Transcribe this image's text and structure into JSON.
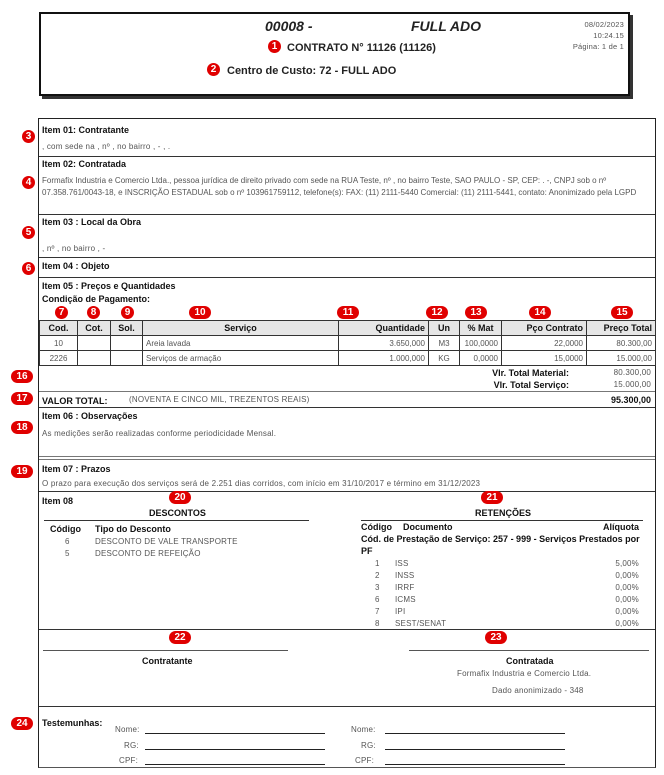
{
  "header": {
    "code": "00008 -",
    "company": "FULL ADO",
    "contract": "CONTRATO N° 11126 (11126)",
    "cost_center": "Centro de Custo: 72 - FULL ADO",
    "date": "08/02/2023",
    "time": "10:24.15",
    "page": "Página: 1 de 1"
  },
  "item01": {
    "title": "Item 01: Contratante",
    "text": ", com sede na  , nº , no bairro , - , ."
  },
  "item02": {
    "title": "Item 02: Contratada",
    "text": "Formafix Industria e Comercio Ltda., pessoa jurídica de direito privado com sede na RUA Teste, nº , no bairro Teste, SAO PAULO - SP, CEP:  .  -, CNPJ sob o nº 07.358.761/0043-18, e INSCRIÇÃO ESTADUAL sob o nº 103961759112, telefone(s): FAX: (11) 2111-5440 Comercial: (11) 2111-5441, contato: Anonimizado pela LGPD"
  },
  "item03": {
    "title": "Item 03 : Local da Obra",
    "text": ", nº , no bairro , -"
  },
  "item04": {
    "title": "Item 04 : Objeto"
  },
  "item05": {
    "title": "Item 05 : Preços e Quantidades",
    "payment": "Condição de Pagamento:",
    "columns": [
      "Cod.",
      "Cot.",
      "Sol.",
      "Serviço",
      "Quantidade",
      "Un",
      "% Mat",
      "Pço Contrato",
      "Preço Total"
    ],
    "rows": [
      [
        "10",
        "",
        "",
        "Areia lavada",
        "3.650,000",
        "M3",
        "100,0000",
        "22,0000",
        "80.300,00"
      ],
      [
        "2226",
        "",
        "",
        "Serviços de armação",
        "1.000,000",
        "KG",
        "0,0000",
        "15,0000",
        "15.000,00"
      ]
    ],
    "total_material_label": "Vlr. Total Material:",
    "total_material": "80.300,00",
    "total_service_label": "Vlr. Total Serviço:",
    "total_service": "15.000,00",
    "valor_total_label": "VALOR TOTAL:",
    "valor_total_words": "(NOVENTA E CINCO MIL, TREZENTOS REAIS)",
    "valor_total": "95.300,00"
  },
  "item06": {
    "title": "Item 06 : Observações",
    "text": "As medições serão realizadas conforme periodicidade Mensal."
  },
  "item07": {
    "title": "Item 07 : Prazos",
    "text": "O prazo para execução dos serviços será de 2.251 dias corridos, com início em 31/10/2017 e término em 31/12/2023"
  },
  "item08": {
    "title": "Item 08",
    "descontos_title": "DESCONTOS",
    "descontos_cols": [
      "Código",
      "Tipo do Desconto"
    ],
    "descontos": [
      [
        "6",
        "DESCONTO DE VALE TRANSPORTE"
      ],
      [
        "5",
        "DESCONTO DE REFEIÇÃO"
      ]
    ],
    "retencoes_title": "RETENÇÕES",
    "retencoes_cols": [
      "Código",
      "Documento",
      "Alíquota"
    ],
    "retencoes_service": "Cód. de Prestação de Serviço: 257 - 999 - Serviços Prestados por PF",
    "retencoes": [
      [
        "1",
        "ISS",
        "5,00%"
      ],
      [
        "2",
        "INSS",
        "0,00%"
      ],
      [
        "3",
        "IRRF",
        "0,00%"
      ],
      [
        "6",
        "ICMS",
        "0,00%"
      ],
      [
        "7",
        "IPI",
        "0,00%"
      ],
      [
        "8",
        "SEST/SENAT",
        "0,00%"
      ]
    ]
  },
  "signatures": {
    "contratante": "Contratante",
    "contratada": "Contratada",
    "contratada_name": "Formafix Industria e Comercio Ltda.",
    "contratada_doc": "Dado anonimizado - 348"
  },
  "witnesses": {
    "title": "Testemunhas:",
    "nome": "Nome:",
    "rg": "RG:",
    "cpf": "CPF:"
  },
  "markers": [
    "1",
    "2",
    "3",
    "4",
    "5",
    "6",
    "7",
    "8",
    "9",
    "10",
    "11",
    "12",
    "13",
    "14",
    "15",
    "16",
    "17",
    "18",
    "19",
    "20",
    "21",
    "22",
    "23",
    "24"
  ],
  "colors": {
    "marker": "#e00000",
    "header_bg": "#e6e6e6"
  }
}
